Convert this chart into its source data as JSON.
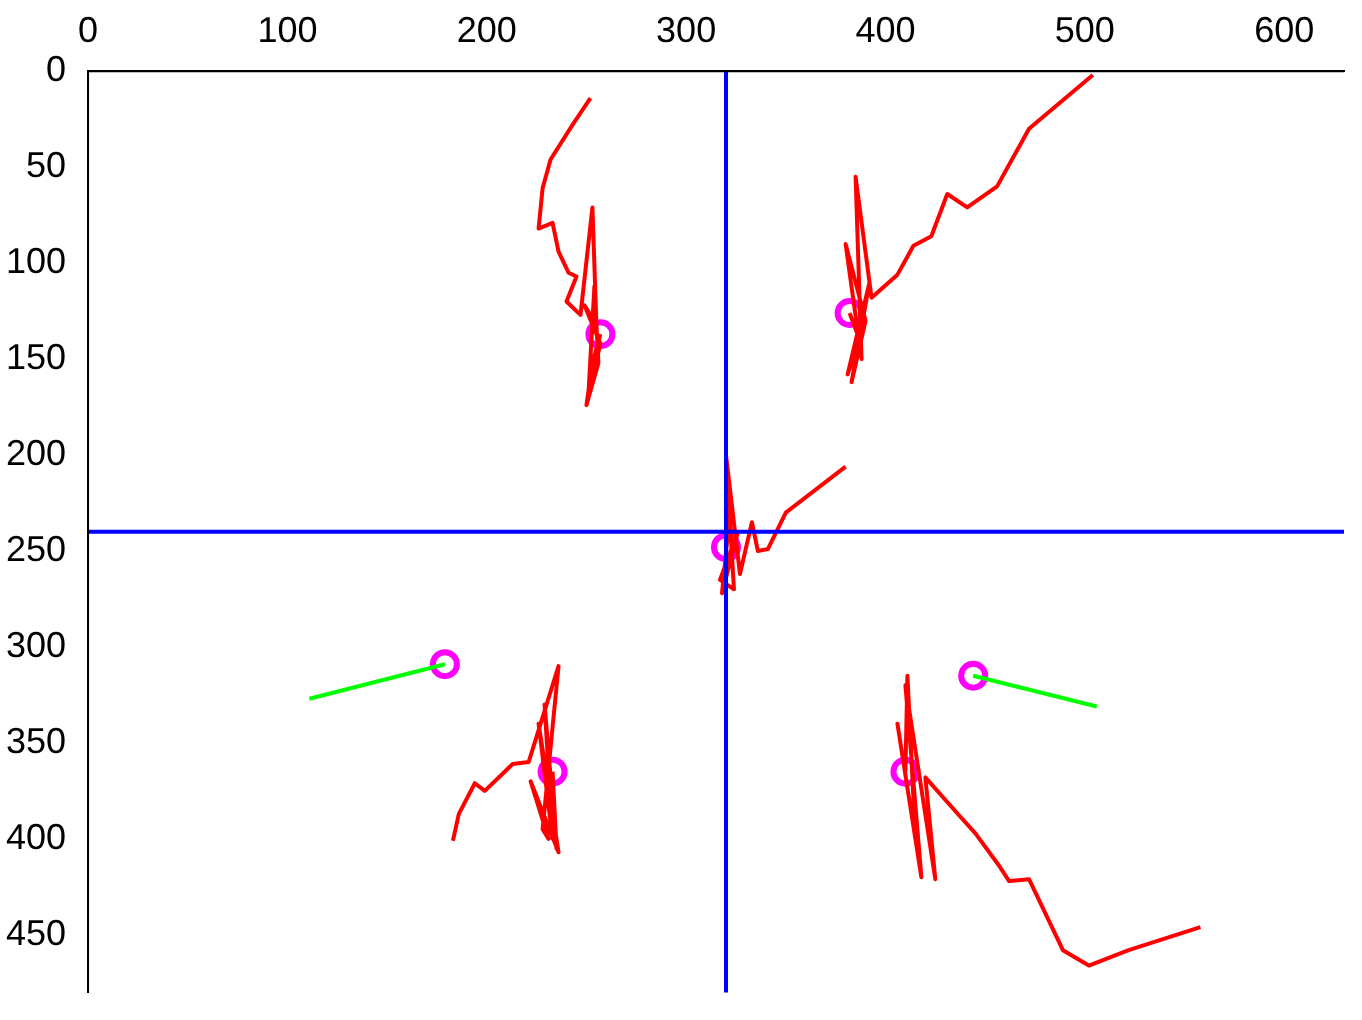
{
  "chart_data": {
    "type": "line",
    "xlim": [
      0,
      630
    ],
    "xticks": [
      0,
      100,
      200,
      300,
      400,
      500,
      600
    ],
    "ylim": [
      480,
      0
    ],
    "yticks": [
      0,
      50,
      100,
      150,
      200,
      250,
      300,
      350,
      400,
      450
    ],
    "grid": false,
    "ref_lines": [
      {
        "axis": "x",
        "value": 320,
        "color": "#0000ff"
      },
      {
        "axis": "y",
        "value": 240,
        "color": "#0000ff"
      }
    ],
    "series": [
      {
        "color": "#ff0000",
        "marker": "none",
        "x": [
          252,
          243,
          232,
          228,
          226,
          233,
          236,
          241,
          245,
          240,
          247,
          253,
          255,
          249,
          257,
          251,
          254,
          256,
          250,
          253,
          257
        ],
        "values": [
          14,
          28,
          46,
          61,
          82,
          79,
          94,
          105,
          107,
          120,
          127,
          71,
          132,
          122,
          142,
          168,
          112,
          152,
          174,
          152,
          137
        ]
      },
      {
        "color": "#ff0000",
        "marker": "none",
        "x": [
          504,
          472,
          456,
          441,
          431,
          423,
          414,
          406,
          393,
          385,
          388,
          380,
          390,
          383,
          392,
          381,
          387,
          382
        ],
        "values": [
          2,
          30,
          60,
          71,
          64,
          86,
          91,
          106,
          118,
          55,
          150,
          90,
          130,
          162,
          110,
          158,
          140,
          126
        ]
      },
      {
        "color": "#ff0000",
        "marker": "none",
        "x": [
          380,
          350,
          341,
          336,
          333,
          327,
          320,
          324,
          317,
          326,
          318,
          322,
          320
        ],
        "values": [
          206,
          230,
          249,
          250,
          235,
          262,
          200,
          270,
          265,
          240,
          272,
          230,
          248
        ]
      },
      {
        "color": "#ff0000",
        "marker": "none",
        "x": [
          183,
          186,
          194,
          199,
          213,
          221,
          236,
          228,
          231,
          222,
          236,
          226,
          233,
          229,
          235,
          233
        ],
        "values": [
          401,
          387,
          371,
          375,
          361,
          360,
          310,
          395,
          400,
          370,
          407,
          340,
          400,
          330,
          405,
          365
        ]
      },
      {
        "color": "#ff0000",
        "marker": "none",
        "x": [
          558,
          522,
          502,
          489,
          472,
          462,
          457,
          445,
          438,
          420,
          425,
          410,
          418,
          406,
          415,
          411,
          410
        ],
        "values": [
          446,
          458,
          466,
          458,
          421,
          422,
          414,
          397,
          389,
          368,
          421,
          320,
          420,
          340,
          400,
          315,
          365
        ]
      },
      {
        "color": "#00ff00",
        "marker": "none",
        "x": [
          111,
          179
        ],
        "values": [
          327,
          309
        ]
      },
      {
        "color": "#00ff00",
        "marker": "none",
        "x": [
          506,
          444
        ],
        "values": [
          331,
          315
        ]
      },
      {
        "type": "scatter",
        "color": "#ff00ff",
        "marker": "circle",
        "x": [
          257,
          382,
          320,
          179,
          233,
          444,
          410
        ],
        "values": [
          137,
          126,
          248,
          309,
          365,
          315,
          365
        ]
      }
    ]
  }
}
